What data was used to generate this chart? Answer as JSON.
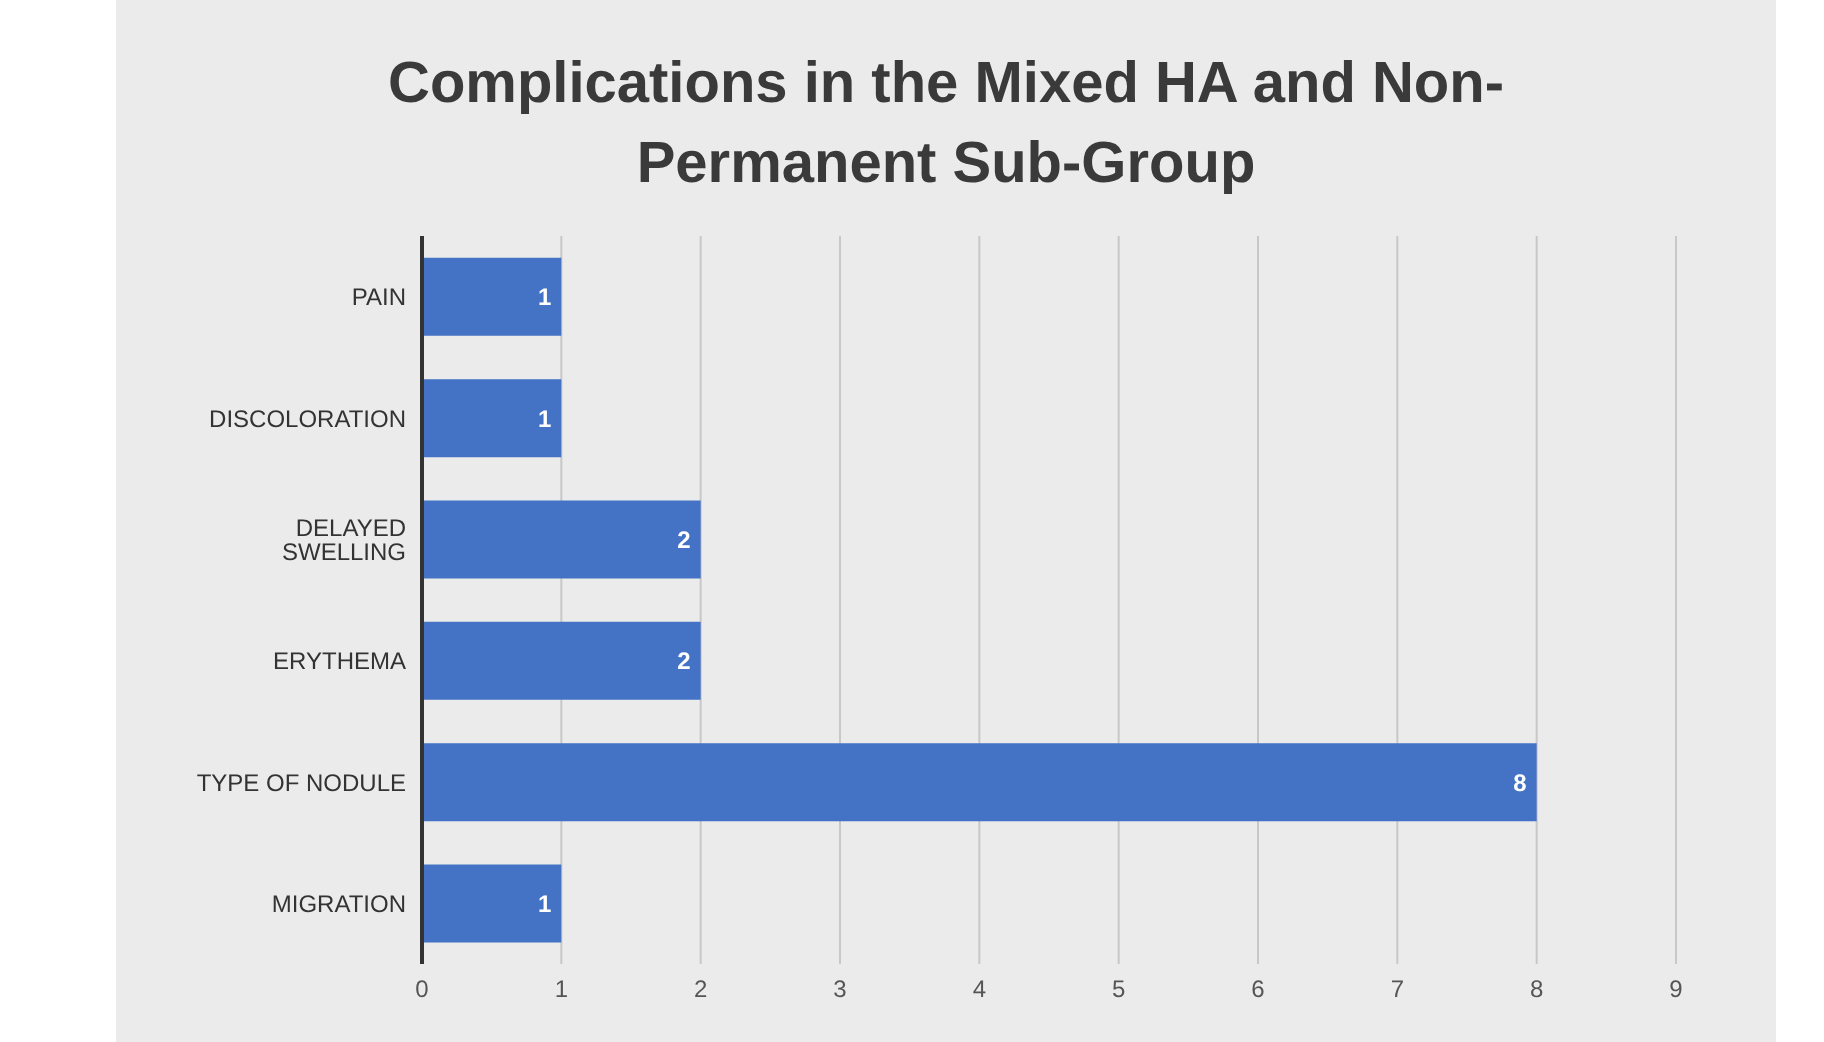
{
  "chart_data": {
    "type": "bar",
    "orientation": "horizontal",
    "title": "Complications in the Mixed HA and Non-Permanent Sub-Group",
    "categories": [
      "PAIN",
      "DISCOLORATION",
      "DELAYED SWELLING",
      "ERYTHEMA",
      "TYPE OF NODULE",
      "MIGRATION"
    ],
    "values": [
      1,
      1,
      2,
      2,
      8,
      1
    ],
    "color": "#4472c4",
    "xlim": [
      0,
      9
    ],
    "xticks": [
      0,
      1,
      2,
      3,
      4,
      5,
      6,
      7,
      8,
      9
    ],
    "grid": "x",
    "data_labels": true
  }
}
